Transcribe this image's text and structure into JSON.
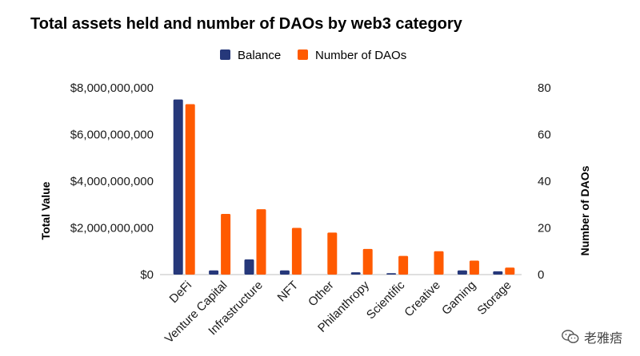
{
  "chart_data": {
    "type": "bar",
    "title": "Total assets held and number of DAOs by web3 category",
    "categories": [
      "DeFi",
      "Venture Capital",
      "Infrastructure",
      "NFT",
      "Other",
      "Philanthropy",
      "Scientific",
      "Creative",
      "Gaming",
      "Storage"
    ],
    "series": [
      {
        "name": "Balance",
        "axis": "left",
        "color": "#26387a",
        "values": [
          7500000000,
          180000000,
          650000000,
          180000000,
          0,
          100000000,
          60000000,
          0,
          180000000,
          140000000
        ]
      },
      {
        "name": "Number of DAOs",
        "axis": "right",
        "color": "#ff5a00",
        "values": [
          73,
          26,
          28,
          20,
          18,
          11,
          8,
          10,
          6,
          3
        ]
      }
    ],
    "ylabel": "Total Value",
    "y2label": "Number of DAOs",
    "ylim": [
      0,
      8000000000
    ],
    "y2lim": [
      0,
      80
    ],
    "yticks": [
      "$0",
      "$2,000,000,000",
      "$4,000,000,000",
      "$6,000,000,000",
      "$8,000,000,000"
    ],
    "y2ticks": [
      "0",
      "20",
      "40",
      "60",
      "80"
    ],
    "legend_position": "top-center",
    "grid": false
  },
  "watermark": {
    "text": "老雅痞",
    "icon": "wechat-icon"
  }
}
